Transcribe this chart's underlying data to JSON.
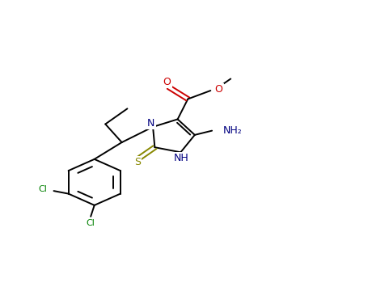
{
  "background": "#ffffff",
  "bond_color": "#000000",
  "colors": {
    "N": "#000080",
    "O": "#cc0000",
    "S": "#888800",
    "Cl": "#008000",
    "C": "#000000"
  },
  "figsize": [
    4.55,
    3.5
  ],
  "dpi": 100
}
